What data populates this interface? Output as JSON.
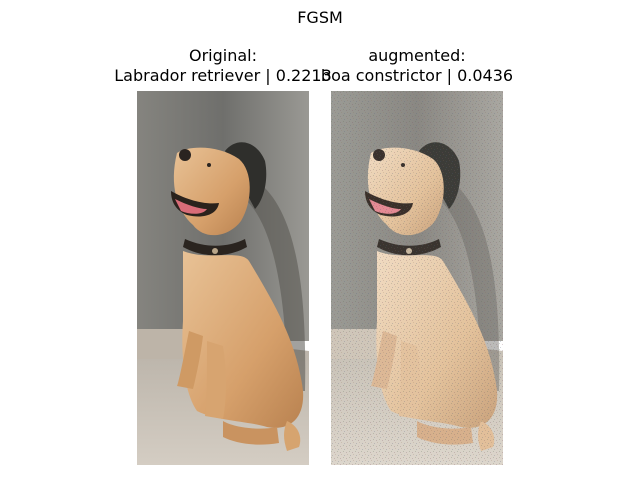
{
  "figure": {
    "suptitle": "FGSM",
    "panels": [
      {
        "title_line1": "Original:",
        "title_line2": "Labrador retriever | 0.2213",
        "image": "labrador-photo"
      },
      {
        "title_line1": "augmented:",
        "title_line2": "boa constrictor | 0.0436",
        "image": "labrador-photo-adversarial-noise"
      }
    ]
  },
  "colors": {
    "wall": "#7f7f7b",
    "floor": "#c9c1b6",
    "dog": "#d9a873",
    "dog_shadow": "#a87645",
    "hat": "#2f2f2c",
    "collar": "#2a241f",
    "tongue": "#d96c78"
  }
}
